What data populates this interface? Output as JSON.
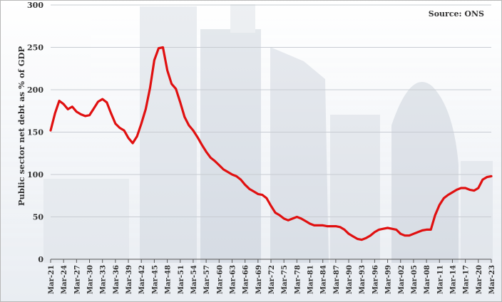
{
  "chart_data": {
    "type": "line",
    "title": "",
    "source": "Source: ONS",
    "ylabel": "Public sector net debt as % of GDP",
    "xlabel": "",
    "ylim": [
      0,
      300
    ],
    "yticks": [
      0,
      50,
      100,
      150,
      200,
      250,
      300
    ],
    "xticks": [
      "Mar-21",
      "Mar-24",
      "Mar-27",
      "Mar-30",
      "Mar-33",
      "Mar-36",
      "Mar-39",
      "Mar-42",
      "Mar-45",
      "Mar-48",
      "Mar-51",
      "Mar-54",
      "Mar-57",
      "Mar-60",
      "Mar-63",
      "Mar-66",
      "Mar-69",
      "Mar-72",
      "Mar-75",
      "Mar-78",
      "Mar-81",
      "Mar-84",
      "Mar-87",
      "Mar-90",
      "Mar-93",
      "Mar-96",
      "Mar-99",
      "Mar-02",
      "Mar-05",
      "Mar-08",
      "Mar-11",
      "Mar-14",
      "Mar-17",
      "Mar-20",
      "Mar-23"
    ],
    "grid": true,
    "line_color": "#e01010",
    "series": [
      {
        "x": [
          1921,
          1922,
          1923,
          1924,
          1925,
          1926,
          1927,
          1928,
          1929,
          1930,
          1931,
          1932,
          1933,
          1934,
          1935,
          1936,
          1937,
          1938,
          1939,
          1940,
          1941,
          1942,
          1943,
          1944,
          1945,
          1946,
          1947,
          1948,
          1949,
          1950,
          1951,
          1952,
          1953,
          1954,
          1955,
          1956,
          1957,
          1958,
          1959,
          1960,
          1961,
          1962,
          1963,
          1964,
          1965,
          1966,
          1967,
          1968,
          1969,
          1970,
          1971,
          1972,
          1973,
          1974,
          1975,
          1976,
          1977,
          1978,
          1979,
          1980,
          1981,
          1982,
          1983,
          1984,
          1985,
          1986,
          1987,
          1988,
          1989,
          1990,
          1991,
          1992,
          1993,
          1994,
          1995,
          1996,
          1997,
          1998,
          1999,
          2000,
          2001,
          2002,
          2003,
          2004,
          2005,
          2006,
          2007,
          2008,
          2009,
          2010,
          2011,
          2012,
          2013,
          2014,
          2015,
          2016,
          2017,
          2018,
          2019,
          2020,
          2021,
          2022,
          2023
        ],
        "values": [
          152,
          172,
          187,
          183,
          177,
          180,
          174,
          171,
          169,
          170,
          178,
          186,
          189,
          185,
          172,
          160,
          155,
          152,
          143,
          137,
          145,
          160,
          177,
          202,
          235,
          249,
          250,
          223,
          207,
          201,
          185,
          168,
          158,
          152,
          144,
          135,
          127,
          120,
          116,
          111,
          106,
          103,
          100,
          98,
          94,
          88,
          83,
          80,
          77,
          76,
          72,
          63,
          55,
          52,
          48,
          46,
          48,
          50,
          48,
          45,
          42,
          40,
          40,
          40,
          39,
          39,
          39,
          38,
          35,
          30,
          27,
          24,
          23,
          25,
          28,
          32,
          35,
          36,
          37,
          36,
          35,
          30,
          28,
          28,
          30,
          32,
          34,
          35,
          35,
          52,
          64,
          72,
          76,
          79,
          82,
          84,
          84,
          82,
          81,
          84,
          94,
          97,
          98
        ]
      }
    ]
  }
}
